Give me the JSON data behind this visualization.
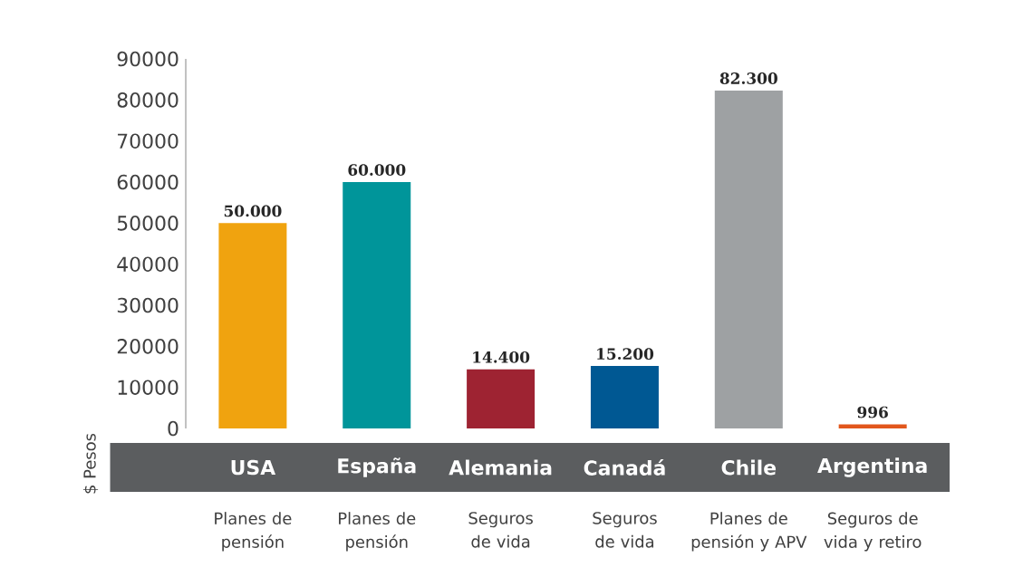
{
  "chart_data": {
    "type": "bar",
    "ylabel": "$ Pesos",
    "categories": [
      "USA",
      "España",
      "Alemania",
      "Canadá",
      "Chile",
      "Argentina"
    ],
    "values": [
      50000,
      60000,
      14400,
      15200,
      82300,
      996
    ],
    "colors": [
      "#f0a30f",
      "#00959a",
      "#9e2332",
      "#005893",
      "#9ea1a3",
      "#e2571c"
    ],
    "value_labels": [
      "50.000",
      "60.000",
      "14.400",
      "15.200",
      "82.300",
      "996"
    ],
    "ylim": [
      0,
      90000
    ],
    "yticks": [
      0,
      10000,
      20000,
      30000,
      40000,
      50000,
      60000,
      70000,
      80000,
      90000
    ],
    "annotations": [
      "Planes de pensión",
      "Planes de pensión",
      "Seguros de vida",
      "Seguros de vida",
      "Planes de pensión y APV",
      "Seguros de vida y retiro"
    ]
  }
}
